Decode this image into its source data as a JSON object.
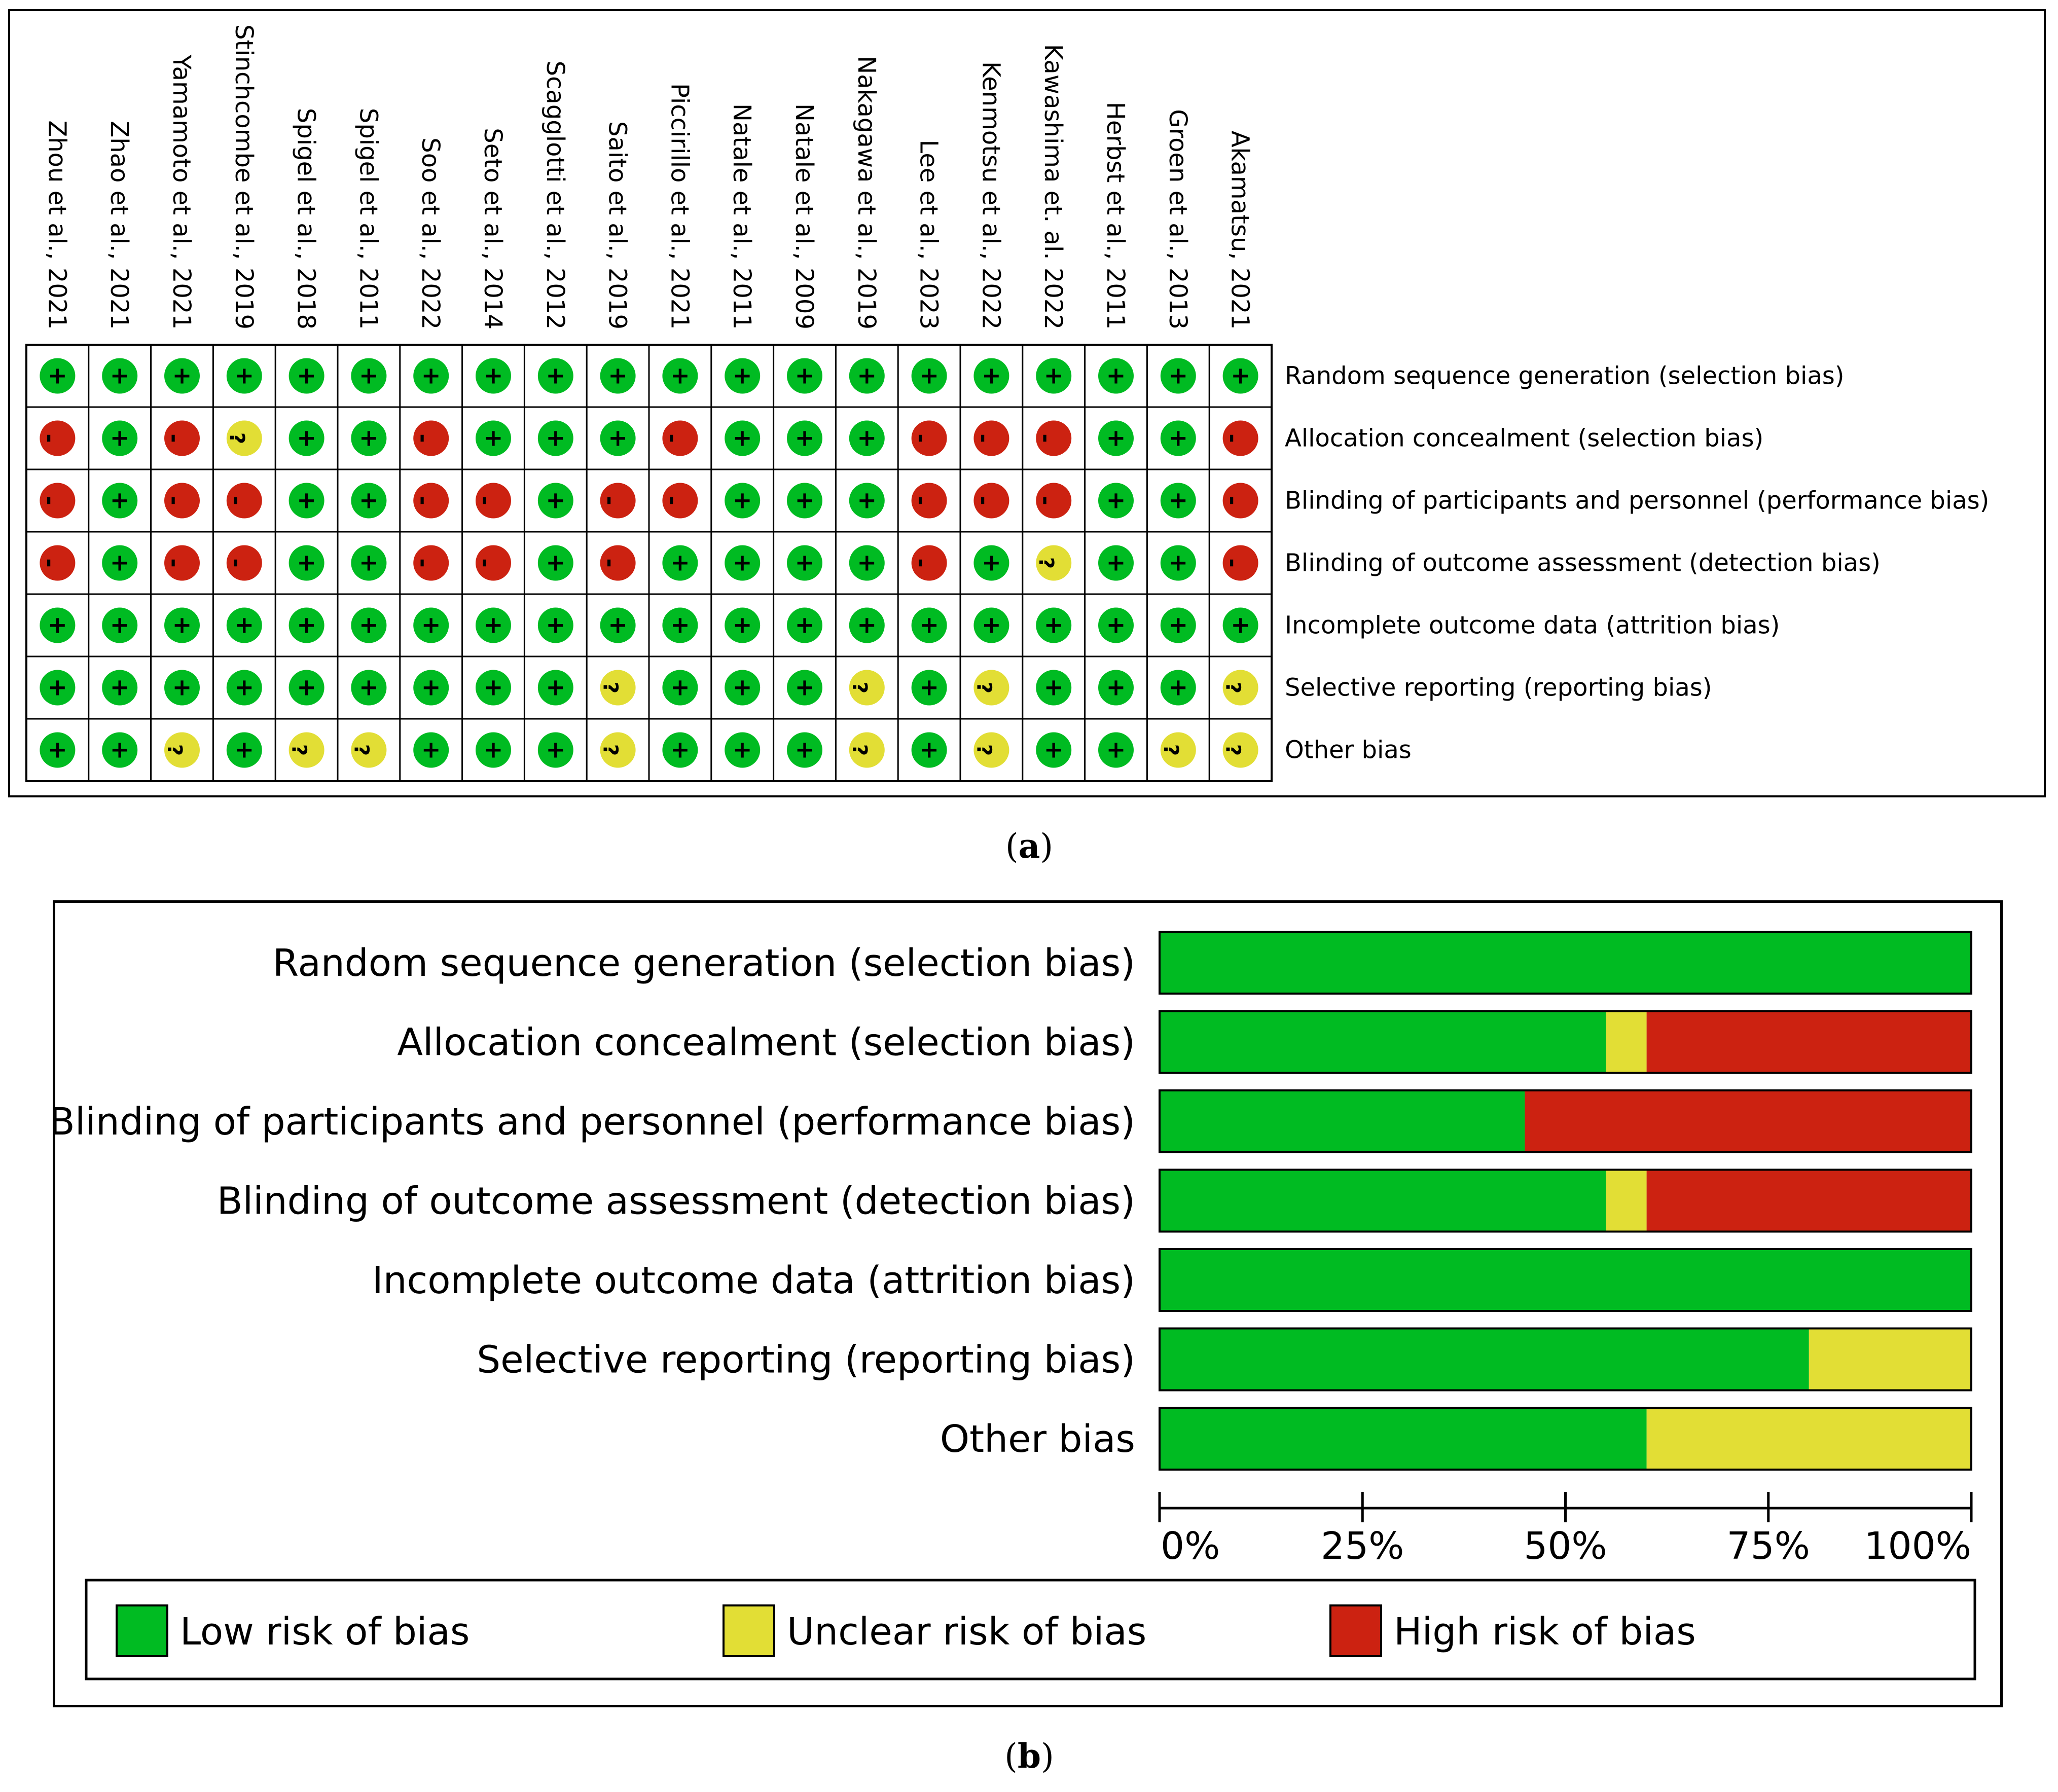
{
  "captions": {
    "a": "a",
    "b": "b"
  },
  "colors": {
    "low": "#00bb22",
    "unclear": "#e2de35",
    "high": "#cc2211",
    "border": "#000000"
  },
  "chart_data": [
    {
      "type": "table",
      "panel": "a",
      "studies": [
        "Zhou et al., 2021",
        "Zhao et al., 2021",
        "Yamamoto et al., 2021",
        "Stinchcombe et al., 2019",
        "Spigel et al., 2018",
        "Spigel et al., 2011",
        "Soo et al., 2022",
        "Seto et al., 2014",
        "Scagglotti et al., 2012",
        "Saito et al., 2019",
        "Piccirillo et al., 2021",
        "Natale et al., 2011",
        "Natale et al., 2009",
        "Nakagawa et al., 2019",
        "Lee et al., 2023",
        "Kenmotsu et al., 2022",
        "Kawashima et. al. 2022",
        "Herbst et al., 2011",
        "Groen et al., 2013",
        "Akamatsu, 2021"
      ],
      "domains": [
        "Random sequence generation (selection bias)",
        "Allocation concealment (selection bias)",
        "Blinding of participants and personnel (performance bias)",
        "Blinding of outcome assessment (detection bias)",
        "Incomplete outcome data (attrition bias)",
        "Selective reporting (reporting bias)",
        "Other bias"
      ],
      "symbols": {
        "low": "+",
        "unclear": "?",
        "high": "-"
      },
      "judgements": [
        [
          "low",
          "low",
          "low",
          "low",
          "low",
          "low",
          "low",
          "low",
          "low",
          "low",
          "low",
          "low",
          "low",
          "low",
          "low",
          "low",
          "low",
          "low",
          "low",
          "low"
        ],
        [
          "high",
          "low",
          "high",
          "unclear",
          "low",
          "low",
          "high",
          "low",
          "low",
          "low",
          "high",
          "low",
          "low",
          "low",
          "high",
          "high",
          "high",
          "low",
          "low",
          "high"
        ],
        [
          "high",
          "low",
          "high",
          "high",
          "low",
          "low",
          "high",
          "high",
          "low",
          "high",
          "high",
          "low",
          "low",
          "low",
          "high",
          "high",
          "high",
          "low",
          "low",
          "high"
        ],
        [
          "high",
          "low",
          "high",
          "high",
          "low",
          "low",
          "high",
          "high",
          "low",
          "high",
          "low",
          "low",
          "low",
          "low",
          "high",
          "low",
          "unclear",
          "low",
          "low",
          "high"
        ],
        [
          "low",
          "low",
          "low",
          "low",
          "low",
          "low",
          "low",
          "low",
          "low",
          "low",
          "low",
          "low",
          "low",
          "low",
          "low",
          "low",
          "low",
          "low",
          "low",
          "low"
        ],
        [
          "low",
          "low",
          "low",
          "low",
          "low",
          "low",
          "low",
          "low",
          "low",
          "unclear",
          "low",
          "low",
          "low",
          "unclear",
          "low",
          "unclear",
          "low",
          "low",
          "low",
          "unclear"
        ],
        [
          "low",
          "low",
          "unclear",
          "low",
          "unclear",
          "unclear",
          "low",
          "low",
          "low",
          "unclear",
          "low",
          "low",
          "low",
          "unclear",
          "low",
          "unclear",
          "low",
          "low",
          "unclear",
          "unclear"
        ]
      ]
    },
    {
      "type": "bar",
      "stacked": true,
      "orientation": "horizontal",
      "panel": "b",
      "categories": [
        "Random sequence generation (selection bias)",
        "Allocation concealment (selection bias)",
        "Blinding of participants and personnel (performance bias)",
        "Blinding of outcome assessment (detection bias)",
        "Incomplete outcome data (attrition bias)",
        "Selective reporting (reporting bias)",
        "Other bias"
      ],
      "series": [
        {
          "name": "Low risk of bias",
          "color": "#00bb22",
          "values": [
            100,
            55,
            45,
            55,
            100,
            80,
            60
          ]
        },
        {
          "name": "Unclear risk of bias",
          "color": "#e2de35",
          "values": [
            0,
            5,
            0,
            5,
            0,
            20,
            40
          ]
        },
        {
          "name": "High risk of bias",
          "color": "#cc2211",
          "values": [
            0,
            40,
            55,
            40,
            0,
            0,
            0
          ]
        }
      ],
      "xlim": [
        0,
        100
      ],
      "xticks": [
        "0%",
        "25%",
        "50%",
        "75%",
        "100%"
      ],
      "legend": "bottom"
    }
  ]
}
